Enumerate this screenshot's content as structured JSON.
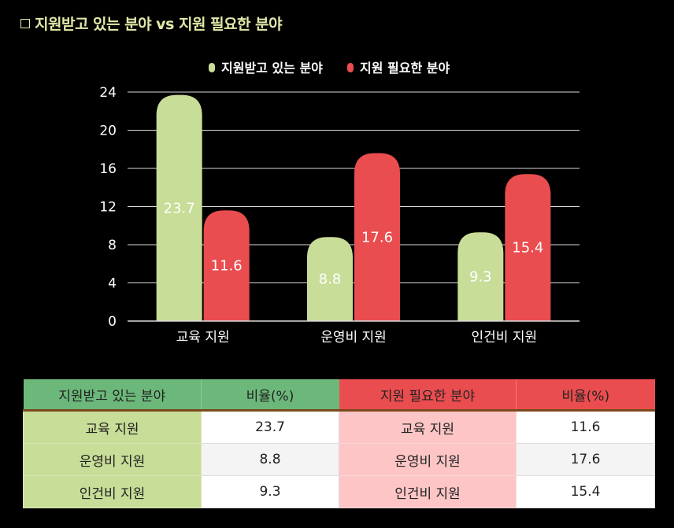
{
  "title": "지원받고 있는 분야 vs 지원 필요한 분야",
  "chart_data": {
    "type": "bar",
    "categories": [
      "교육 지원",
      "운영비 지원",
      "인건비 지원"
    ],
    "series": [
      {
        "name": "지원받고 있는 분야",
        "values": [
          23.7,
          8.8,
          9.3
        ],
        "color": "#c8dd98"
      },
      {
        "name": "지원 필요한 분야",
        "values": [
          11.6,
          17.6,
          15.4
        ],
        "color": "#ea4d4f"
      }
    ],
    "ylim": [
      0,
      24
    ],
    "yticks": [
      0,
      4,
      8,
      12,
      16,
      20,
      24
    ],
    "grid": true,
    "legend": "top-center"
  },
  "table": {
    "headers": [
      "지원받고 있는 분야",
      "비율(%)",
      "지원 필요한 분야",
      "비율(%)"
    ],
    "rows": [
      [
        "교육 지원",
        "23.7",
        "교육 지원",
        "11.6"
      ],
      [
        "운영비 지원",
        "8.8",
        "운영비 지원",
        "17.6"
      ],
      [
        "인건비 지원",
        "9.3",
        "인건비 지원",
        "15.4"
      ]
    ]
  }
}
